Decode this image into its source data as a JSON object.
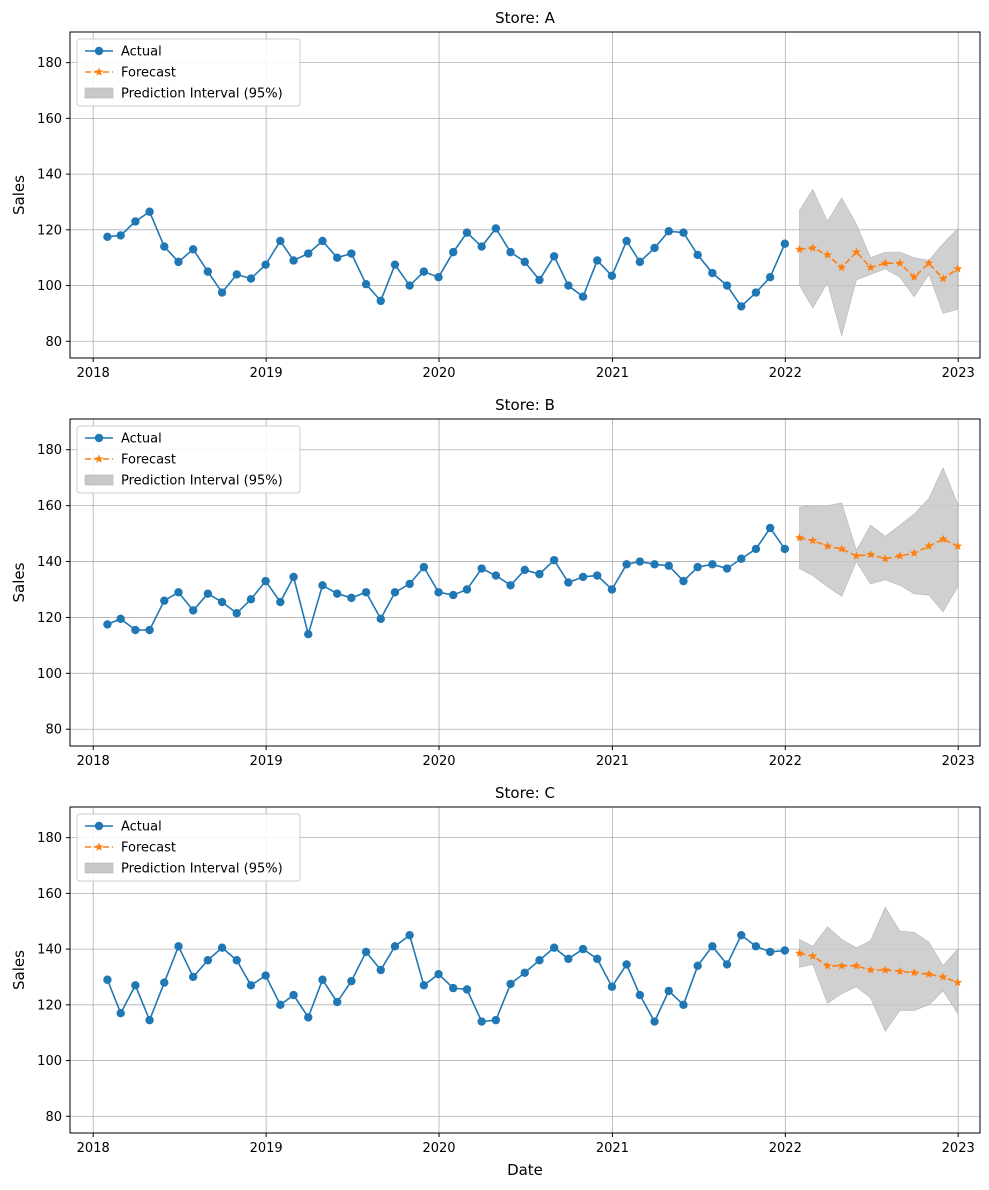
{
  "chart_data": [
    {
      "type": "line",
      "title": "Store: A",
      "xlabel": "",
      "ylabel": "Sales",
      "xlim": [
        "2017-11-13",
        "2023-02-16"
      ],
      "ylim": [
        74,
        191
      ],
      "x_ticks": [
        "2018",
        "2019",
        "2020",
        "2021",
        "2022",
        "2023"
      ],
      "y_ticks": [
        80,
        100,
        120,
        140,
        160,
        180
      ],
      "grid": true,
      "legend": "upper-left",
      "legend_labels": [
        "Actual",
        "Forecast",
        "Prediction Interval (95%)"
      ],
      "actual": {
        "x": [
          "2018-01-31",
          "2018-02-28",
          "2018-03-31",
          "2018-04-30",
          "2018-05-31",
          "2018-06-30",
          "2018-07-31",
          "2018-08-31",
          "2018-09-30",
          "2018-10-31",
          "2018-11-30",
          "2018-12-31",
          "2019-01-31",
          "2019-02-28",
          "2019-03-31",
          "2019-04-30",
          "2019-05-31",
          "2019-06-30",
          "2019-07-31",
          "2019-08-31",
          "2019-09-30",
          "2019-10-31",
          "2019-11-30",
          "2019-12-31",
          "2020-01-31",
          "2020-02-29",
          "2020-03-31",
          "2020-04-30",
          "2020-05-31",
          "2020-06-30",
          "2020-07-31",
          "2020-08-31",
          "2020-09-30",
          "2020-10-31",
          "2020-11-30",
          "2020-12-31",
          "2021-01-31",
          "2021-02-28",
          "2021-03-31",
          "2021-04-30",
          "2021-05-31",
          "2021-06-30",
          "2021-07-31",
          "2021-08-31",
          "2021-09-30",
          "2021-10-31",
          "2021-11-30",
          "2021-12-31"
        ],
        "y": [
          117.5,
          118,
          123,
          126.5,
          114,
          108.5,
          113,
          105,
          97.5,
          104,
          102.5,
          107.5,
          116,
          109,
          111.5,
          116,
          110,
          111.5,
          100.5,
          94.5,
          107.5,
          100,
          105,
          103,
          112,
          119,
          114,
          120.5,
          112,
          108.5,
          102,
          110.5,
          100,
          96,
          109,
          103.5,
          116,
          108.5,
          113.5,
          119.5,
          119,
          111,
          104.5,
          100,
          92.5,
          97.5,
          103,
          115
        ]
      },
      "forecast": {
        "x": [
          "2022-01-31",
          "2022-02-28",
          "2022-03-31",
          "2022-04-30",
          "2022-05-31",
          "2022-06-30",
          "2022-07-31",
          "2022-08-31",
          "2022-09-30",
          "2022-10-31",
          "2022-11-30",
          "2022-12-31"
        ],
        "y": [
          113,
          113.5,
          111,
          106.5,
          112,
          106.5,
          108,
          108,
          103,
          108,
          102.5,
          106
        ],
        "lower": [
          100,
          92,
          101,
          82,
          102,
          104,
          106,
          103,
          96,
          104,
          90,
          91.5
        ],
        "upper": [
          127,
          134.5,
          123,
          131.5,
          122,
          110,
          112,
          112,
          110,
          109,
          115,
          120.5
        ]
      }
    },
    {
      "type": "line",
      "title": "Store: B",
      "xlabel": "",
      "ylabel": "Sales",
      "xlim": [
        "2017-11-13",
        "2023-02-16"
      ],
      "ylim": [
        74,
        191
      ],
      "x_ticks": [
        "2018",
        "2019",
        "2020",
        "2021",
        "2022",
        "2023"
      ],
      "y_ticks": [
        80,
        100,
        120,
        140,
        160,
        180
      ],
      "grid": true,
      "legend": "upper-left",
      "legend_labels": [
        "Actual",
        "Forecast",
        "Prediction Interval (95%)"
      ],
      "actual": {
        "x": [
          "2018-01-31",
          "2018-02-28",
          "2018-03-31",
          "2018-04-30",
          "2018-05-31",
          "2018-06-30",
          "2018-07-31",
          "2018-08-31",
          "2018-09-30",
          "2018-10-31",
          "2018-11-30",
          "2018-12-31",
          "2019-01-31",
          "2019-02-28",
          "2019-03-31",
          "2019-04-30",
          "2019-05-31",
          "2019-06-30",
          "2019-07-31",
          "2019-08-31",
          "2019-09-30",
          "2019-10-31",
          "2019-11-30",
          "2019-12-31",
          "2020-01-31",
          "2020-02-29",
          "2020-03-31",
          "2020-04-30",
          "2020-05-31",
          "2020-06-30",
          "2020-07-31",
          "2020-08-31",
          "2020-09-30",
          "2020-10-31",
          "2020-11-30",
          "2020-12-31",
          "2021-01-31",
          "2021-02-28",
          "2021-03-31",
          "2021-04-30",
          "2021-05-31",
          "2021-06-30",
          "2021-07-31",
          "2021-08-31",
          "2021-09-30",
          "2021-10-31",
          "2021-11-30",
          "2021-12-31"
        ],
        "y": [
          117.5,
          119.5,
          115.5,
          115.5,
          126,
          129,
          122.5,
          128.5,
          125.5,
          121.5,
          126.5,
          133,
          125.5,
          134.5,
          114,
          131.5,
          128.5,
          127,
          129,
          119.5,
          129,
          132,
          138,
          129,
          128,
          130,
          137.5,
          135,
          131.5,
          137,
          135.5,
          140.5,
          132.5,
          134.5,
          135,
          130,
          139,
          140,
          139,
          138.5,
          133,
          138,
          139,
          137.5,
          141,
          144.5,
          152,
          144.5
        ]
      },
      "forecast": {
        "x": [
          "2022-01-31",
          "2022-02-28",
          "2022-03-31",
          "2022-04-30",
          "2022-05-31",
          "2022-06-30",
          "2022-07-31",
          "2022-08-31",
          "2022-09-30",
          "2022-10-31",
          "2022-11-30",
          "2022-12-31"
        ],
        "y": [
          148.5,
          147.5,
          145.5,
          144.5,
          142,
          142.5,
          141,
          142,
          143,
          145.5,
          148,
          145.5
        ],
        "lower": [
          137.5,
          135,
          131,
          127.5,
          140,
          132,
          133.5,
          131.5,
          128.5,
          128,
          122,
          131
        ],
        "upper": [
          159.5,
          160,
          160,
          161,
          144,
          153,
          149,
          153,
          157,
          162.5,
          173.5,
          160.5
        ]
      }
    },
    {
      "type": "line",
      "title": "Store: C",
      "xlabel": "Date",
      "ylabel": "Sales",
      "xlim": [
        "2017-11-13",
        "2023-02-16"
      ],
      "ylim": [
        74,
        191
      ],
      "x_ticks": [
        "2018",
        "2019",
        "2020",
        "2021",
        "2022",
        "2023"
      ],
      "y_ticks": [
        80,
        100,
        120,
        140,
        160,
        180
      ],
      "grid": true,
      "legend": "upper-left",
      "legend_labels": [
        "Actual",
        "Forecast",
        "Prediction Interval (95%)"
      ],
      "actual": {
        "x": [
          "2018-01-31",
          "2018-02-28",
          "2018-03-31",
          "2018-04-30",
          "2018-05-31",
          "2018-06-30",
          "2018-07-31",
          "2018-08-31",
          "2018-09-30",
          "2018-10-31",
          "2018-11-30",
          "2018-12-31",
          "2019-01-31",
          "2019-02-28",
          "2019-03-31",
          "2019-04-30",
          "2019-05-31",
          "2019-06-30",
          "2019-07-31",
          "2019-08-31",
          "2019-09-30",
          "2019-10-31",
          "2019-11-30",
          "2019-12-31",
          "2020-01-31",
          "2020-02-29",
          "2020-03-31",
          "2020-04-30",
          "2020-05-31",
          "2020-06-30",
          "2020-07-31",
          "2020-08-31",
          "2020-09-30",
          "2020-10-31",
          "2020-11-30",
          "2020-12-31",
          "2021-01-31",
          "2021-02-28",
          "2021-03-31",
          "2021-04-30",
          "2021-05-31",
          "2021-06-30",
          "2021-07-31",
          "2021-08-31",
          "2021-09-30",
          "2021-10-31",
          "2021-11-30",
          "2021-12-31"
        ],
        "y": [
          129,
          117,
          127,
          114.5,
          128,
          141,
          130,
          136,
          140.5,
          136,
          127,
          130.5,
          120,
          123.5,
          115.5,
          129,
          121,
          128.5,
          139,
          132.5,
          141,
          145,
          127,
          131,
          126,
          125.5,
          114,
          114.5,
          127.5,
          131.5,
          136,
          140.5,
          136.5,
          140,
          136.5,
          126.5,
          134.5,
          123.5,
          114,
          125,
          120,
          134,
          141,
          134.5,
          145,
          141,
          139,
          139.5
        ]
      },
      "forecast": {
        "x": [
          "2022-01-31",
          "2022-02-28",
          "2022-03-31",
          "2022-04-30",
          "2022-05-31",
          "2022-06-30",
          "2022-07-31",
          "2022-08-31",
          "2022-09-30",
          "2022-10-31",
          "2022-11-30",
          "2022-12-31"
        ],
        "y": [
          138.5,
          137.5,
          134,
          134,
          134,
          132.5,
          132.5,
          132,
          131.5,
          131,
          130,
          128
        ],
        "lower": [
          133.5,
          134.5,
          120.5,
          124,
          126.5,
          122.5,
          110.5,
          118,
          118,
          120,
          125,
          117
        ],
        "upper": [
          143.5,
          141,
          148,
          143.5,
          140.5,
          143,
          155,
          146.5,
          146,
          142.5,
          134,
          140
        ]
      }
    }
  ]
}
